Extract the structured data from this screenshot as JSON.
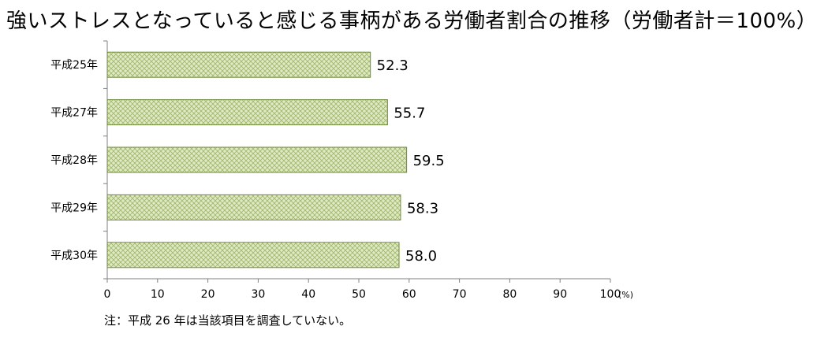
{
  "title": "強いストレスとなっていると感じる事柄がある労働者割合の推移（労働者計＝100%）",
  "note": "注：平成 26 年は当該項目を調査していない。",
  "chart_data": {
    "type": "bar",
    "orientation": "horizontal",
    "categories": [
      "平成25年",
      "平成27年",
      "平成28年",
      "平成29年",
      "平成30年"
    ],
    "values": [
      52.3,
      55.7,
      59.5,
      58.3,
      58.0
    ],
    "value_labels": [
      "52.3",
      "55.7",
      "59.5",
      "58.3",
      "58.0"
    ],
    "xlim": [
      0,
      100
    ],
    "xticks": [
      0,
      10,
      20,
      30,
      40,
      50,
      60,
      70,
      80,
      90,
      100
    ],
    "xunit": "(%)",
    "grid": false,
    "legend": "none",
    "bar_fill": "#dfe9c3",
    "bar_pattern_color": "#9fb66a",
    "bar_stroke": "#6f8a3a"
  }
}
